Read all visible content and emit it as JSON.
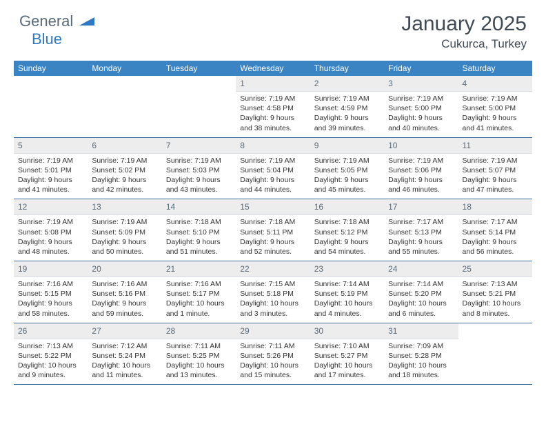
{
  "logo": {
    "text1": "General",
    "text2": "Blue"
  },
  "title": "January 2025",
  "location": "Cukurca, Turkey",
  "colors": {
    "header_bg": "#3b84c4",
    "header_text": "#ffffff",
    "daynum_bg": "#ededed",
    "row_border": "#3b6fa0",
    "logo_gray": "#5a6a78",
    "logo_blue": "#2f78c2",
    "title_color": "#404a55"
  },
  "dow": [
    "Sunday",
    "Monday",
    "Tuesday",
    "Wednesday",
    "Thursday",
    "Friday",
    "Saturday"
  ],
  "weeks": [
    [
      null,
      null,
      null,
      {
        "n": "1",
        "sr": "Sunrise: 7:19 AM",
        "ss": "Sunset: 4:58 PM",
        "dl": "Daylight: 9 hours and 38 minutes."
      },
      {
        "n": "2",
        "sr": "Sunrise: 7:19 AM",
        "ss": "Sunset: 4:59 PM",
        "dl": "Daylight: 9 hours and 39 minutes."
      },
      {
        "n": "3",
        "sr": "Sunrise: 7:19 AM",
        "ss": "Sunset: 5:00 PM",
        "dl": "Daylight: 9 hours and 40 minutes."
      },
      {
        "n": "4",
        "sr": "Sunrise: 7:19 AM",
        "ss": "Sunset: 5:00 PM",
        "dl": "Daylight: 9 hours and 41 minutes."
      }
    ],
    [
      {
        "n": "5",
        "sr": "Sunrise: 7:19 AM",
        "ss": "Sunset: 5:01 PM",
        "dl": "Daylight: 9 hours and 41 minutes."
      },
      {
        "n": "6",
        "sr": "Sunrise: 7:19 AM",
        "ss": "Sunset: 5:02 PM",
        "dl": "Daylight: 9 hours and 42 minutes."
      },
      {
        "n": "7",
        "sr": "Sunrise: 7:19 AM",
        "ss": "Sunset: 5:03 PM",
        "dl": "Daylight: 9 hours and 43 minutes."
      },
      {
        "n": "8",
        "sr": "Sunrise: 7:19 AM",
        "ss": "Sunset: 5:04 PM",
        "dl": "Daylight: 9 hours and 44 minutes."
      },
      {
        "n": "9",
        "sr": "Sunrise: 7:19 AM",
        "ss": "Sunset: 5:05 PM",
        "dl": "Daylight: 9 hours and 45 minutes."
      },
      {
        "n": "10",
        "sr": "Sunrise: 7:19 AM",
        "ss": "Sunset: 5:06 PM",
        "dl": "Daylight: 9 hours and 46 minutes."
      },
      {
        "n": "11",
        "sr": "Sunrise: 7:19 AM",
        "ss": "Sunset: 5:07 PM",
        "dl": "Daylight: 9 hours and 47 minutes."
      }
    ],
    [
      {
        "n": "12",
        "sr": "Sunrise: 7:19 AM",
        "ss": "Sunset: 5:08 PM",
        "dl": "Daylight: 9 hours and 48 minutes."
      },
      {
        "n": "13",
        "sr": "Sunrise: 7:19 AM",
        "ss": "Sunset: 5:09 PM",
        "dl": "Daylight: 9 hours and 50 minutes."
      },
      {
        "n": "14",
        "sr": "Sunrise: 7:18 AM",
        "ss": "Sunset: 5:10 PM",
        "dl": "Daylight: 9 hours and 51 minutes."
      },
      {
        "n": "15",
        "sr": "Sunrise: 7:18 AM",
        "ss": "Sunset: 5:11 PM",
        "dl": "Daylight: 9 hours and 52 minutes."
      },
      {
        "n": "16",
        "sr": "Sunrise: 7:18 AM",
        "ss": "Sunset: 5:12 PM",
        "dl": "Daylight: 9 hours and 54 minutes."
      },
      {
        "n": "17",
        "sr": "Sunrise: 7:17 AM",
        "ss": "Sunset: 5:13 PM",
        "dl": "Daylight: 9 hours and 55 minutes."
      },
      {
        "n": "18",
        "sr": "Sunrise: 7:17 AM",
        "ss": "Sunset: 5:14 PM",
        "dl": "Daylight: 9 hours and 56 minutes."
      }
    ],
    [
      {
        "n": "19",
        "sr": "Sunrise: 7:16 AM",
        "ss": "Sunset: 5:15 PM",
        "dl": "Daylight: 9 hours and 58 minutes."
      },
      {
        "n": "20",
        "sr": "Sunrise: 7:16 AM",
        "ss": "Sunset: 5:16 PM",
        "dl": "Daylight: 9 hours and 59 minutes."
      },
      {
        "n": "21",
        "sr": "Sunrise: 7:16 AM",
        "ss": "Sunset: 5:17 PM",
        "dl": "Daylight: 10 hours and 1 minute."
      },
      {
        "n": "22",
        "sr": "Sunrise: 7:15 AM",
        "ss": "Sunset: 5:18 PM",
        "dl": "Daylight: 10 hours and 3 minutes."
      },
      {
        "n": "23",
        "sr": "Sunrise: 7:14 AM",
        "ss": "Sunset: 5:19 PM",
        "dl": "Daylight: 10 hours and 4 minutes."
      },
      {
        "n": "24",
        "sr": "Sunrise: 7:14 AM",
        "ss": "Sunset: 5:20 PM",
        "dl": "Daylight: 10 hours and 6 minutes."
      },
      {
        "n": "25",
        "sr": "Sunrise: 7:13 AM",
        "ss": "Sunset: 5:21 PM",
        "dl": "Daylight: 10 hours and 8 minutes."
      }
    ],
    [
      {
        "n": "26",
        "sr": "Sunrise: 7:13 AM",
        "ss": "Sunset: 5:22 PM",
        "dl": "Daylight: 10 hours and 9 minutes."
      },
      {
        "n": "27",
        "sr": "Sunrise: 7:12 AM",
        "ss": "Sunset: 5:24 PM",
        "dl": "Daylight: 10 hours and 11 minutes."
      },
      {
        "n": "28",
        "sr": "Sunrise: 7:11 AM",
        "ss": "Sunset: 5:25 PM",
        "dl": "Daylight: 10 hours and 13 minutes."
      },
      {
        "n": "29",
        "sr": "Sunrise: 7:11 AM",
        "ss": "Sunset: 5:26 PM",
        "dl": "Daylight: 10 hours and 15 minutes."
      },
      {
        "n": "30",
        "sr": "Sunrise: 7:10 AM",
        "ss": "Sunset: 5:27 PM",
        "dl": "Daylight: 10 hours and 17 minutes."
      },
      {
        "n": "31",
        "sr": "Sunrise: 7:09 AM",
        "ss": "Sunset: 5:28 PM",
        "dl": "Daylight: 10 hours and 18 minutes."
      },
      null
    ]
  ]
}
